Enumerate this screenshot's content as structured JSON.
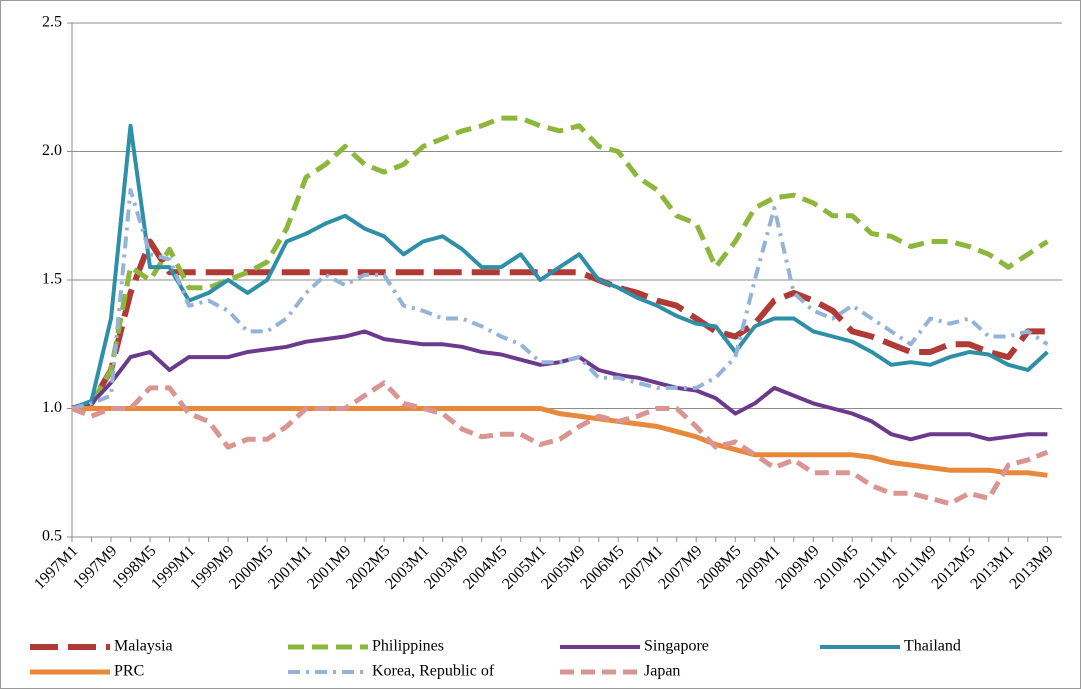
{
  "chart_data": {
    "type": "line",
    "categories": [
      "1997M1",
      null,
      "1997M9",
      null,
      "1998M5",
      null,
      "1999M1",
      null,
      "1999M9",
      null,
      "2000M5",
      null,
      "2001M1",
      null,
      "2001M9",
      null,
      "2002M5",
      null,
      "2003M1",
      null,
      "2003M9",
      null,
      "2004M5",
      null,
      "2005M1",
      null,
      "2005M9",
      null,
      "2006M5",
      null,
      "2007M1",
      null,
      "2007M9",
      null,
      "2008M5",
      null,
      "2009M1",
      null,
      "2009M9",
      null,
      "2010M5",
      null,
      "2011M1",
      null,
      "2011M9",
      null,
      "2012M5",
      null,
      "2013M1",
      null,
      "2013M9"
    ],
    "ylim": [
      0.5,
      2.5
    ],
    "yticks": [
      0.5,
      {
        "value": 1,
        "label": "1.0"
      },
      1.5,
      {
        "value": 2,
        "label": "2.0"
      },
      2.5
    ],
    "grid": true,
    "legend": "bottom",
    "series": [
      {
        "name": "Malaysia",
        "color": "#b03a35",
        "values": [
          1.0,
          1.02,
          1.15,
          1.45,
          1.65,
          1.53,
          1.53,
          1.53,
          1.53,
          1.53,
          1.53,
          1.53,
          1.53,
          1.53,
          1.53,
          1.53,
          1.53,
          1.53,
          1.53,
          1.53,
          1.53,
          1.53,
          1.53,
          1.53,
          1.53,
          1.53,
          1.53,
          1.5,
          1.47,
          1.45,
          1.42,
          1.4,
          1.35,
          1.3,
          1.28,
          1.33,
          1.42,
          1.45,
          1.42,
          1.38,
          1.3,
          1.28,
          1.25,
          1.22,
          1.22,
          1.25,
          1.25,
          1.22,
          1.2,
          1.3,
          1.3
        ]
      },
      {
        "name": "Philippines",
        "color": "#8db63c",
        "values": [
          1.0,
          1.02,
          1.15,
          1.55,
          1.5,
          1.62,
          1.47,
          1.47,
          1.5,
          1.53,
          1.57,
          1.7,
          1.9,
          1.95,
          2.02,
          1.95,
          1.92,
          1.95,
          2.02,
          2.05,
          2.08,
          2.1,
          2.13,
          2.13,
          2.1,
          2.08,
          2.1,
          2.02,
          2.0,
          1.9,
          1.85,
          1.75,
          1.72,
          1.55,
          1.65,
          1.78,
          1.82,
          1.83,
          1.8,
          1.75,
          1.75,
          1.68,
          1.67,
          1.63,
          1.65,
          1.65,
          1.63,
          1.6,
          1.55,
          1.6,
          1.65
        ]
      },
      {
        "name": "Singapore",
        "color": "#6b3a8c",
        "values": [
          1.0,
          1.02,
          1.1,
          1.2,
          1.22,
          1.15,
          1.2,
          1.2,
          1.2,
          1.22,
          1.23,
          1.24,
          1.26,
          1.27,
          1.28,
          1.3,
          1.27,
          1.26,
          1.25,
          1.25,
          1.24,
          1.22,
          1.21,
          1.19,
          1.17,
          1.18,
          1.2,
          1.15,
          1.13,
          1.12,
          1.1,
          1.08,
          1.07,
          1.04,
          0.98,
          1.02,
          1.08,
          1.05,
          1.02,
          1.0,
          0.98,
          0.95,
          0.9,
          0.88,
          0.9,
          0.9,
          0.9,
          0.88,
          0.89,
          0.9,
          0.9
        ]
      },
      {
        "name": "Thailand",
        "color": "#2e8fa6",
        "values": [
          1.0,
          1.03,
          1.35,
          2.1,
          1.55,
          1.55,
          1.42,
          1.45,
          1.5,
          1.45,
          1.5,
          1.65,
          1.68,
          1.72,
          1.75,
          1.7,
          1.67,
          1.6,
          1.65,
          1.67,
          1.62,
          1.55,
          1.55,
          1.6,
          1.5,
          1.55,
          1.6,
          1.5,
          1.47,
          1.43,
          1.4,
          1.36,
          1.33,
          1.32,
          1.22,
          1.32,
          1.35,
          1.35,
          1.3,
          1.28,
          1.26,
          1.22,
          1.17,
          1.18,
          1.17,
          1.2,
          1.22,
          1.21,
          1.17,
          1.15,
          1.22
        ]
      },
      {
        "name": "PRC",
        "color": "#e8883a",
        "values": [
          1.0,
          1.0,
          1.0,
          1.0,
          1.0,
          1.0,
          1.0,
          1.0,
          1.0,
          1.0,
          1.0,
          1.0,
          1.0,
          1.0,
          1.0,
          1.0,
          1.0,
          1.0,
          1.0,
          1.0,
          1.0,
          1.0,
          1.0,
          1.0,
          1.0,
          0.98,
          0.97,
          0.96,
          0.95,
          0.94,
          0.93,
          0.91,
          0.89,
          0.86,
          0.84,
          0.82,
          0.82,
          0.82,
          0.82,
          0.82,
          0.82,
          0.81,
          0.79,
          0.78,
          0.77,
          0.76,
          0.76,
          0.76,
          0.75,
          0.75,
          0.74
        ]
      },
      {
        "name": "Korea, Republic of",
        "color": "#95b2d8",
        "values": [
          1.0,
          1.02,
          1.05,
          1.85,
          1.6,
          1.58,
          1.4,
          1.42,
          1.38,
          1.3,
          1.3,
          1.35,
          1.45,
          1.52,
          1.48,
          1.52,
          1.52,
          1.4,
          1.38,
          1.35,
          1.35,
          1.32,
          1.28,
          1.25,
          1.18,
          1.18,
          1.2,
          1.12,
          1.12,
          1.1,
          1.08,
          1.08,
          1.08,
          1.12,
          1.2,
          1.5,
          1.78,
          1.45,
          1.38,
          1.35,
          1.4,
          1.35,
          1.3,
          1.25,
          1.35,
          1.33,
          1.35,
          1.28,
          1.28,
          1.3,
          1.25
        ]
      },
      {
        "name": "Japan",
        "color": "#d99592",
        "values": [
          1.0,
          0.97,
          1.0,
          1.0,
          1.08,
          1.08,
          0.98,
          0.95,
          0.85,
          0.88,
          0.88,
          0.93,
          1.0,
          1.0,
          1.0,
          1.05,
          1.1,
          1.02,
          1.0,
          0.98,
          0.92,
          0.89,
          0.9,
          0.9,
          0.86,
          0.88,
          0.93,
          0.97,
          0.95,
          0.97,
          1.0,
          1.0,
          0.93,
          0.85,
          0.87,
          0.82,
          0.77,
          0.8,
          0.75,
          0.75,
          0.75,
          0.7,
          0.67,
          0.67,
          0.65,
          0.63,
          0.67,
          0.65,
          0.78,
          0.8,
          0.83
        ]
      }
    ]
  }
}
